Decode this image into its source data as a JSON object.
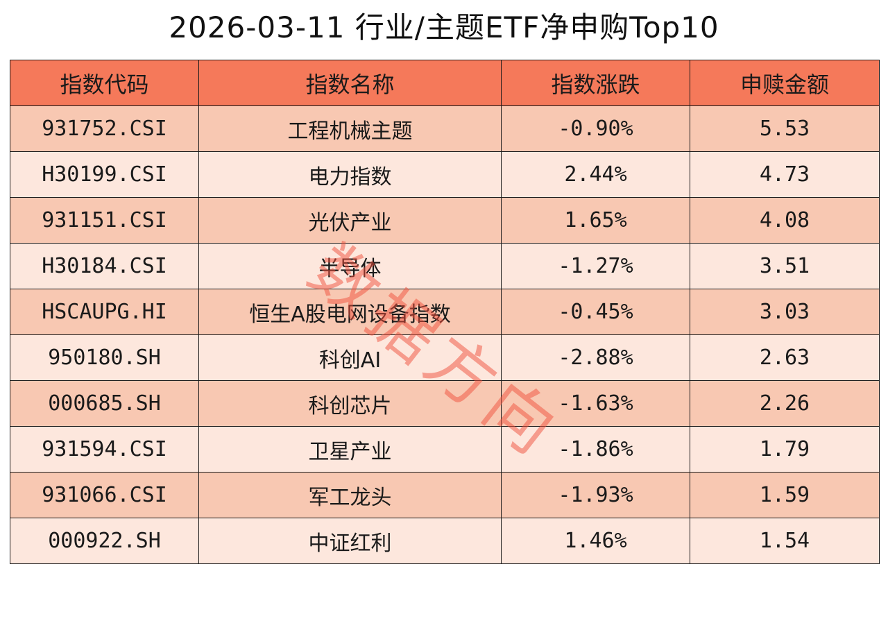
{
  "title": "2026-03-11 行业/主题ETF净申购Top10",
  "watermark": "数据方向",
  "colors": {
    "header_bg": "#f5795a",
    "row_odd_bg": "#f8c8b2",
    "row_even_bg": "#fde7dd",
    "border": "#1a1a1a",
    "watermark": "#f0503c"
  },
  "chart_data": {
    "type": "table",
    "columns": [
      "指数代码",
      "指数名称",
      "指数涨跌",
      "申赎金额"
    ],
    "rows": [
      [
        "931752.CSI",
        "工程机械主题",
        "-0.90%",
        "5.53"
      ],
      [
        "H30199.CSI",
        "电力指数",
        "2.44%",
        "4.73"
      ],
      [
        "931151.CSI",
        "光伏产业",
        "1.65%",
        "4.08"
      ],
      [
        "H30184.CSI",
        "半导体",
        "-1.27%",
        "3.51"
      ],
      [
        "HSCAUPG.HI",
        "恒生A股电网设备指数",
        "-0.45%",
        "3.03"
      ],
      [
        "950180.SH",
        "科创AI",
        "-2.88%",
        "2.63"
      ],
      [
        "000685.SH",
        "科创芯片",
        "-1.63%",
        "2.26"
      ],
      [
        "931594.CSI",
        "卫星产业",
        "-1.86%",
        "1.79"
      ],
      [
        "931066.CSI",
        "军工龙头",
        "-1.93%",
        "1.59"
      ],
      [
        "000922.SH",
        "中证红利",
        "1.46%",
        "1.54"
      ]
    ]
  }
}
